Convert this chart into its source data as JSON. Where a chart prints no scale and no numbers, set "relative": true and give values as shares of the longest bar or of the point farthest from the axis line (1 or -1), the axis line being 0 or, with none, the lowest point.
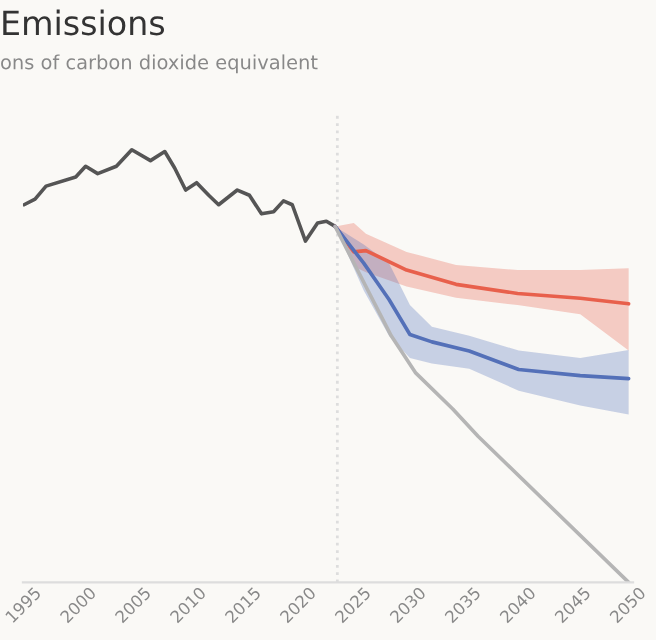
{
  "chart_data": {
    "type": "line",
    "title": "Emissions",
    "subtitle": "ons of carbon dioxide equivalent",
    "relative": true,
    "xlim": [
      1994.9,
      2050.4
    ],
    "xticks": [
      1995,
      2000,
      2005,
      2010,
      2015,
      2020,
      2025,
      2030,
      2035,
      2040,
      2045,
      2050
    ],
    "ref_lines": [
      {
        "axis": "x",
        "value": 2023.5,
        "color": "#dddddd",
        "line_style": "dotted"
      }
    ],
    "series": [
      {
        "color": "#555555",
        "x": [
          1995,
          1996,
          1997,
          1999.7,
          2000.6,
          2001.7,
          2003.4,
          2004.8,
          2006.5,
          2007.8,
          2008.7,
          2009.7,
          2010.7,
          2011.8,
          2012.7,
          2014.4,
          2015.5,
          2016.6,
          2017.7,
          2018.6,
          2019.4,
          2020.6,
          2021.7,
          2022.5,
          2023.3
        ],
        "values": [
          0.873,
          0.886,
          0.916,
          0.937,
          0.962,
          0.945,
          0.962,
          1,
          0.975,
          0.996,
          0.958,
          0.907,
          0.924,
          0.895,
          0.873,
          0.907,
          0.895,
          0.852,
          0.857,
          0.882,
          0.873,
          0.789,
          0.831,
          0.835,
          0.823
        ]
      },
      {
        "color": "#e8604c",
        "x": [
          2023.3,
          2025,
          2026.1,
          2029.8,
          2034.3,
          2039.9,
          2045.6,
          2050
        ],
        "values": [
          0.823,
          0.764,
          0.767,
          0.722,
          0.689,
          0.668,
          0.657,
          0.644
        ],
        "upper": [
          0.823,
          0.831,
          0.806,
          0.764,
          0.734,
          0.722,
          0.722,
          0.726
        ],
        "lower": [
          0.823,
          0.73,
          0.717,
          0.684,
          0.658,
          0.641,
          0.62,
          0.536
        ]
      },
      {
        "color": "#5470b8",
        "x": [
          2023.3,
          2025.9,
          2028.2,
          2030.1,
          2032.1,
          2035.5,
          2040,
          2045.6,
          2050
        ],
        "values": [
          0.823,
          0.738,
          0.654,
          0.573,
          0.556,
          0.535,
          0.492,
          0.478,
          0.471
        ],
        "upper": [
          0.823,
          0.781,
          0.738,
          0.641,
          0.591,
          0.57,
          0.536,
          0.519,
          0.537
        ],
        "lower": [
          0.823,
          0.675,
          0.57,
          0.519,
          0.506,
          0.494,
          0.443,
          0.409,
          0.388
        ]
      },
      {
        "color": "#b5b5b5",
        "x": [
          2023.3,
          2026.1,
          2028.4,
          2030.6,
          2034,
          2036.3,
          2050
        ],
        "values": [
          0.823,
          0.684,
          0.57,
          0.485,
          0.401,
          0.338,
          0
        ]
      }
    ]
  }
}
